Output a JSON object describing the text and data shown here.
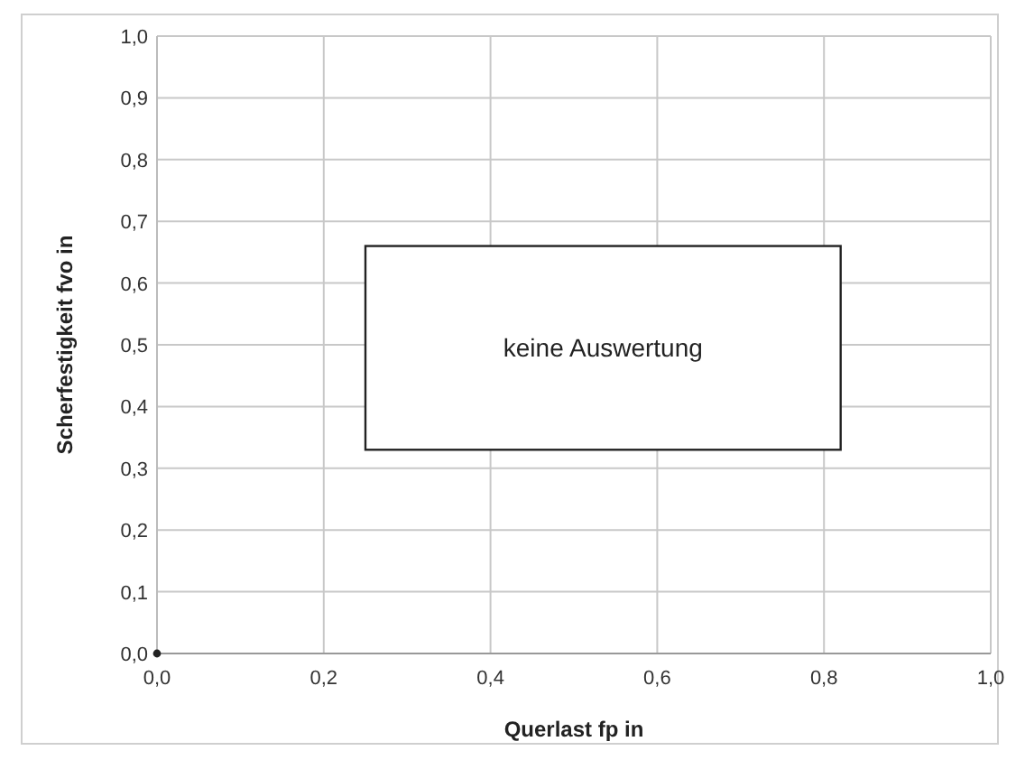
{
  "chart_data": {
    "type": "scatter",
    "xlabel": "Querlast fp in",
    "ylabel": "Scherfestigkeit fvo in",
    "annotations": [
      "keine Auswertung"
    ],
    "x": [
      0.0
    ],
    "series": [
      {
        "color": "#222222",
        "values": [
          0.0
        ]
      }
    ],
    "xlim": [
      0,
      1
    ],
    "ylim": [
      0,
      1
    ],
    "xticks": [
      {
        "value": 0,
        "label": "0,0"
      },
      {
        "value": 0.2,
        "label": "0,2"
      },
      {
        "value": 0.4,
        "label": "0,4"
      },
      {
        "value": 0.6,
        "label": "0,6"
      },
      {
        "value": 0.8,
        "label": "0,8"
      },
      {
        "value": 1,
        "label": "1,0"
      }
    ],
    "yticks": [
      {
        "value": 0,
        "label": "0,0"
      },
      {
        "value": 0.1,
        "label": "0,1"
      },
      {
        "value": 0.2,
        "label": "0,2"
      },
      {
        "value": 0.3,
        "label": "0,3"
      },
      {
        "value": 0.4,
        "label": "0,4"
      },
      {
        "value": 0.5,
        "label": "0,5"
      },
      {
        "value": 0.6,
        "label": "0,6"
      },
      {
        "value": 0.7,
        "label": "0,7"
      },
      {
        "value": 0.8,
        "label": "0,8"
      },
      {
        "value": 0.9,
        "label": "0,9"
      },
      {
        "value": 1,
        "label": "1,0"
      }
    ],
    "grid": true,
    "marker": "circle"
  }
}
